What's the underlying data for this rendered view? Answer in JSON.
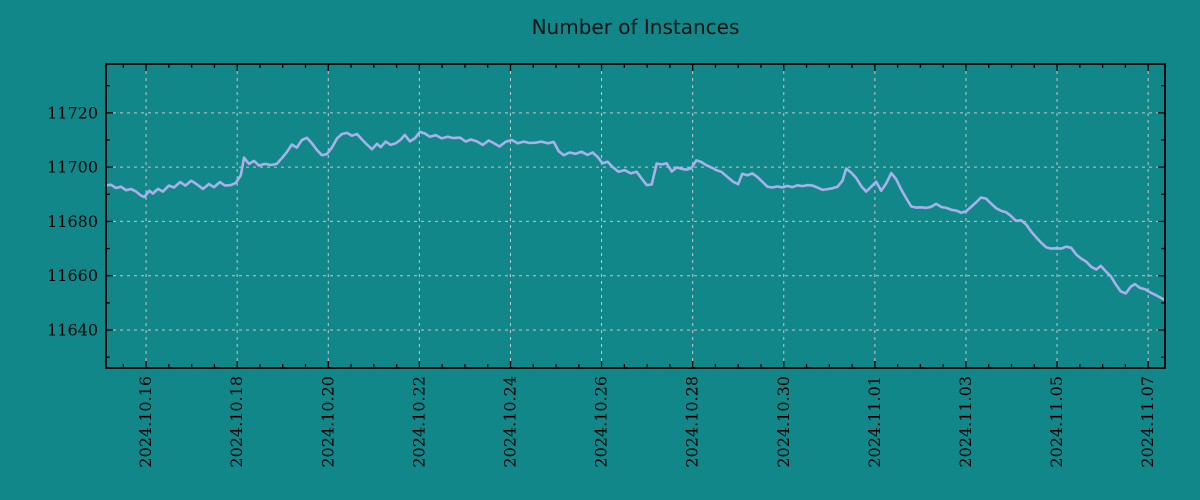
{
  "page": {
    "background": "#118789"
  },
  "chart_data": {
    "type": "line",
    "title": "Number of Instances",
    "xlabel": "",
    "ylabel": "",
    "legend": "none",
    "grid": "major-dashed",
    "x_axis": {
      "unit": "date",
      "xlim_days": [
        0.12,
        23.37
      ],
      "day0_date": "2024-10-15",
      "major_tick_days": [
        1,
        3,
        5,
        7,
        9,
        11,
        13,
        15,
        17,
        19,
        21,
        23
      ],
      "tick_labels": [
        "2024.10.16",
        "2024.10.18",
        "2024.10.20",
        "2024.10.22",
        "2024.10.24",
        "2024.10.26",
        "2024.10.28",
        "2024.10.30",
        "2024.11.01",
        "2024.11.03",
        "2024.11.05",
        "2024.11.07"
      ],
      "minor_tick_step_days": 0.5,
      "label_rotation_deg": 90
    },
    "y_axis": {
      "ylim": [
        11626,
        11738
      ],
      "major_ticks": [
        11640,
        11660,
        11680,
        11700,
        11720
      ],
      "tick_labels": [
        "11640",
        "11660",
        "11680",
        "11700",
        "11720"
      ],
      "minor_ticks": [
        11630,
        11650,
        11670,
        11690,
        11710,
        11730
      ]
    },
    "colors": {
      "background": "#118789",
      "line": "#a9b1ea",
      "grid": "#c6c6c6",
      "axis": "#000000",
      "text": "#000000"
    },
    "series": [
      {
        "name": "instances",
        "points": [
          [
            0.12,
            11693.3
          ],
          [
            0.23,
            11693.5
          ],
          [
            0.34,
            11692.3
          ],
          [
            0.45,
            11692.8
          ],
          [
            0.56,
            11691.5
          ],
          [
            0.67,
            11691.9
          ],
          [
            0.78,
            11691.0
          ],
          [
            0.89,
            11689.5
          ],
          [
            0.96,
            11689.0
          ],
          [
            1.07,
            11691.3
          ],
          [
            1.15,
            11690.3
          ],
          [
            1.26,
            11692.0
          ],
          [
            1.37,
            11691.0
          ],
          [
            1.5,
            11693.2
          ],
          [
            1.61,
            11692.5
          ],
          [
            1.75,
            11694.5
          ],
          [
            1.86,
            11693.2
          ],
          [
            1.99,
            11695.0
          ],
          [
            2.12,
            11693.6
          ],
          [
            2.25,
            11692.0
          ],
          [
            2.38,
            11693.8
          ],
          [
            2.49,
            11692.6
          ],
          [
            2.62,
            11694.5
          ],
          [
            2.73,
            11693.2
          ],
          [
            2.86,
            11693.4
          ],
          [
            2.97,
            11694.2
          ],
          [
            3.08,
            11697.0
          ],
          [
            3.15,
            11703.5
          ],
          [
            3.26,
            11701.2
          ],
          [
            3.37,
            11702.3
          ],
          [
            3.48,
            11700.6
          ],
          [
            3.61,
            11701.2
          ],
          [
            3.74,
            11700.8
          ],
          [
            3.87,
            11701.2
          ],
          [
            3.98,
            11703.3
          ],
          [
            4.09,
            11705.5
          ],
          [
            4.2,
            11708.3
          ],
          [
            4.31,
            11707.2
          ],
          [
            4.42,
            11710.0
          ],
          [
            4.53,
            11710.8
          ],
          [
            4.64,
            11708.8
          ],
          [
            4.75,
            11706.3
          ],
          [
            4.86,
            11704.4
          ],
          [
            4.97,
            11704.8
          ],
          [
            5.08,
            11707.2
          ],
          [
            5.19,
            11710.5
          ],
          [
            5.3,
            11712.2
          ],
          [
            5.41,
            11712.6
          ],
          [
            5.52,
            11711.6
          ],
          [
            5.63,
            11712.2
          ],
          [
            5.74,
            11710.2
          ],
          [
            5.85,
            11708.3
          ],
          [
            5.96,
            11706.6
          ],
          [
            6.07,
            11708.6
          ],
          [
            6.15,
            11707.4
          ],
          [
            6.26,
            11709.4
          ],
          [
            6.37,
            11708.2
          ],
          [
            6.48,
            11708.8
          ],
          [
            6.59,
            11710.1
          ],
          [
            6.68,
            11711.9
          ],
          [
            6.79,
            11709.5
          ],
          [
            6.9,
            11710.6
          ],
          [
            7.01,
            11713.0
          ],
          [
            7.12,
            11712.4
          ],
          [
            7.23,
            11711.2
          ],
          [
            7.36,
            11711.8
          ],
          [
            7.49,
            11710.6
          ],
          [
            7.62,
            11711.2
          ],
          [
            7.75,
            11710.7
          ],
          [
            7.89,
            11710.9
          ],
          [
            8.02,
            11709.4
          ],
          [
            8.13,
            11710.2
          ],
          [
            8.26,
            11709.5
          ],
          [
            8.39,
            11708.2
          ],
          [
            8.52,
            11709.8
          ],
          [
            8.63,
            11708.9
          ],
          [
            8.76,
            11707.6
          ],
          [
            8.89,
            11709.3
          ],
          [
            9.03,
            11710.0
          ],
          [
            9.16,
            11708.8
          ],
          [
            9.29,
            11709.4
          ],
          [
            9.42,
            11708.9
          ],
          [
            9.55,
            11709.0
          ],
          [
            9.68,
            11709.4
          ],
          [
            9.82,
            11708.8
          ],
          [
            9.95,
            11709.3
          ],
          [
            10.06,
            11705.8
          ],
          [
            10.17,
            11704.4
          ],
          [
            10.3,
            11705.4
          ],
          [
            10.43,
            11704.9
          ],
          [
            10.56,
            11705.7
          ],
          [
            10.69,
            11704.5
          ],
          [
            10.8,
            11705.4
          ],
          [
            10.91,
            11703.8
          ],
          [
            11.02,
            11701.4
          ],
          [
            11.13,
            11702.0
          ],
          [
            11.24,
            11700.1
          ],
          [
            11.37,
            11698.3
          ],
          [
            11.51,
            11698.9
          ],
          [
            11.64,
            11697.7
          ],
          [
            11.77,
            11698.3
          ],
          [
            11.88,
            11695.8
          ],
          [
            11.99,
            11693.4
          ],
          [
            12.1,
            11693.6
          ],
          [
            12.21,
            11701.3
          ],
          [
            12.32,
            11701.0
          ],
          [
            12.43,
            11701.4
          ],
          [
            12.54,
            11698.4
          ],
          [
            12.65,
            11699.9
          ],
          [
            12.75,
            11699.4
          ],
          [
            12.86,
            11699.1
          ],
          [
            12.97,
            11699.6
          ],
          [
            13.08,
            11702.5
          ],
          [
            13.19,
            11701.9
          ],
          [
            13.3,
            11700.7
          ],
          [
            13.41,
            11699.9
          ],
          [
            13.52,
            11698.9
          ],
          [
            13.63,
            11698.3
          ],
          [
            13.76,
            11696.4
          ],
          [
            13.89,
            11694.6
          ],
          [
            14.0,
            11693.7
          ],
          [
            14.09,
            11697.6
          ],
          [
            14.2,
            11697.0
          ],
          [
            14.31,
            11697.7
          ],
          [
            14.42,
            11696.4
          ],
          [
            14.53,
            11694.6
          ],
          [
            14.64,
            11692.8
          ],
          [
            14.75,
            11692.5
          ],
          [
            14.86,
            11692.9
          ],
          [
            14.97,
            11692.5
          ],
          [
            15.08,
            11693.1
          ],
          [
            15.19,
            11692.6
          ],
          [
            15.3,
            11693.3
          ],
          [
            15.41,
            11693.0
          ],
          [
            15.52,
            11693.4
          ],
          [
            15.63,
            11693.2
          ],
          [
            15.74,
            11692.5
          ],
          [
            15.85,
            11691.6
          ],
          [
            15.96,
            11691.9
          ],
          [
            16.07,
            11692.2
          ],
          [
            16.18,
            11692.8
          ],
          [
            16.29,
            11695.0
          ],
          [
            16.37,
            11699.5
          ],
          [
            16.48,
            11698.0
          ],
          [
            16.59,
            11696.0
          ],
          [
            16.7,
            11693.0
          ],
          [
            16.81,
            11691.0
          ],
          [
            16.92,
            11692.8
          ],
          [
            17.03,
            11694.6
          ],
          [
            17.14,
            11691.3
          ],
          [
            17.25,
            11694.0
          ],
          [
            17.36,
            11697.8
          ],
          [
            17.47,
            11695.5
          ],
          [
            17.58,
            11691.7
          ],
          [
            17.69,
            11688.5
          ],
          [
            17.8,
            11685.5
          ],
          [
            17.91,
            11685.1
          ],
          [
            18.02,
            11685.2
          ],
          [
            18.13,
            11685.0
          ],
          [
            18.24,
            11685.4
          ],
          [
            18.35,
            11686.5
          ],
          [
            18.46,
            11685.3
          ],
          [
            18.57,
            11685.0
          ],
          [
            18.68,
            11684.3
          ],
          [
            18.79,
            11684.0
          ],
          [
            18.89,
            11683.2
          ],
          [
            19.0,
            11683.7
          ],
          [
            19.11,
            11685.3
          ],
          [
            19.22,
            11687.0
          ],
          [
            19.33,
            11688.8
          ],
          [
            19.44,
            11688.4
          ],
          [
            19.55,
            11686.6
          ],
          [
            19.66,
            11684.9
          ],
          [
            19.77,
            11683.9
          ],
          [
            19.88,
            11683.4
          ],
          [
            19.99,
            11682.0
          ],
          [
            20.1,
            11680.2
          ],
          [
            20.21,
            11680.4
          ],
          [
            20.32,
            11678.9
          ],
          [
            20.43,
            11676.3
          ],
          [
            20.54,
            11674.2
          ],
          [
            20.65,
            11672.2
          ],
          [
            20.76,
            11670.5
          ],
          [
            20.87,
            11670.0
          ],
          [
            20.98,
            11670.1
          ],
          [
            21.09,
            11670.0
          ],
          [
            21.2,
            11670.7
          ],
          [
            21.31,
            11670.3
          ],
          [
            21.42,
            11667.8
          ],
          [
            21.53,
            11666.3
          ],
          [
            21.64,
            11665.2
          ],
          [
            21.75,
            11663.3
          ],
          [
            21.86,
            11662.3
          ],
          [
            21.96,
            11663.6
          ],
          [
            22.07,
            11661.6
          ],
          [
            22.18,
            11659.8
          ],
          [
            22.29,
            11656.8
          ],
          [
            22.4,
            11654.2
          ],
          [
            22.51,
            11653.5
          ],
          [
            22.62,
            11656.0
          ],
          [
            22.71,
            11656.9
          ],
          [
            22.82,
            11655.5
          ],
          [
            22.93,
            11655.0
          ],
          [
            23.04,
            11653.9
          ],
          [
            23.15,
            11653.0
          ],
          [
            23.26,
            11652.0
          ],
          [
            23.37,
            11651.0
          ]
        ]
      }
    ]
  }
}
